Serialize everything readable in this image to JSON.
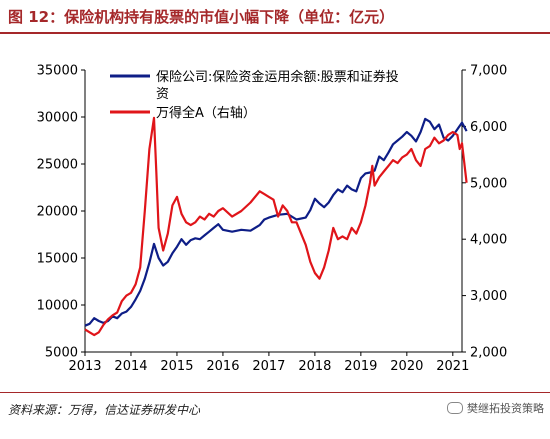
{
  "title": "图 12：保险机构持有股票的市值小幅下降（单位：亿元）",
  "source": "资料来源：万得，信达证券研发中心",
  "watermark": "樊继拓投资策略",
  "colors": {
    "series_blue": "#0e1e87",
    "series_red": "#e0151a",
    "accent": "#a5282a"
  },
  "chart_data": {
    "type": "line",
    "x_ticks": [
      "2013",
      "2014",
      "2015",
      "2016",
      "2017",
      "2018",
      "2019",
      "2020",
      "2021"
    ],
    "y_left": {
      "ylim": [
        5000,
        35000
      ],
      "ticks": [
        "5000",
        "10000",
        "15000",
        "20000",
        "25000",
        "30000",
        "35000"
      ]
    },
    "y_right": {
      "ylim": [
        2000,
        7000
      ],
      "ticks": [
        "2,000",
        "3,000",
        "4,000",
        "5,000",
        "6,000",
        "7,000"
      ]
    },
    "legend_placement": "top-left",
    "series": [
      {
        "name": "保险公司:保险资金运用余额:股票和证券投资",
        "axis": "left",
        "color": "#0e1e87",
        "points": [
          [
            2013.0,
            7800
          ],
          [
            2013.1,
            8000
          ],
          [
            2013.2,
            8600
          ],
          [
            2013.3,
            8300
          ],
          [
            2013.4,
            8100
          ],
          [
            2013.5,
            8300
          ],
          [
            2013.6,
            8800
          ],
          [
            2013.7,
            8600
          ],
          [
            2013.8,
            9100
          ],
          [
            2013.9,
            9300
          ],
          [
            2014.0,
            9800
          ],
          [
            2014.1,
            10600
          ],
          [
            2014.2,
            11500
          ],
          [
            2014.3,
            12800
          ],
          [
            2014.4,
            14500
          ],
          [
            2014.5,
            16500
          ],
          [
            2014.6,
            15000
          ],
          [
            2014.7,
            14200
          ],
          [
            2014.8,
            14600
          ],
          [
            2014.9,
            15500
          ],
          [
            2015.0,
            16200
          ],
          [
            2015.1,
            17000
          ],
          [
            2015.2,
            16400
          ],
          [
            2015.3,
            16900
          ],
          [
            2015.4,
            17100
          ],
          [
            2015.5,
            17000
          ],
          [
            2015.6,
            17400
          ],
          [
            2015.7,
            17800
          ],
          [
            2015.8,
            18200
          ],
          [
            2015.9,
            18600
          ],
          [
            2016.0,
            18000
          ],
          [
            2016.2,
            17800
          ],
          [
            2016.4,
            18000
          ],
          [
            2016.6,
            17900
          ],
          [
            2016.8,
            18500
          ],
          [
            2016.9,
            19100
          ],
          [
            2017.0,
            19300
          ],
          [
            2017.2,
            19600
          ],
          [
            2017.4,
            19700
          ],
          [
            2017.6,
            19100
          ],
          [
            2017.8,
            19300
          ],
          [
            2017.9,
            20100
          ],
          [
            2018.0,
            21300
          ],
          [
            2018.1,
            20800
          ],
          [
            2018.2,
            20400
          ],
          [
            2018.3,
            20900
          ],
          [
            2018.4,
            21700
          ],
          [
            2018.5,
            22300
          ],
          [
            2018.6,
            22000
          ],
          [
            2018.7,
            22700
          ],
          [
            2018.8,
            22300
          ],
          [
            2018.9,
            22100
          ],
          [
            2019.0,
            23500
          ],
          [
            2019.1,
            24000
          ],
          [
            2019.2,
            24100
          ],
          [
            2019.3,
            24300
          ],
          [
            2019.4,
            25800
          ],
          [
            2019.5,
            25400
          ],
          [
            2019.6,
            26200
          ],
          [
            2019.7,
            27100
          ],
          [
            2019.8,
            27500
          ],
          [
            2019.9,
            27900
          ],
          [
            2020.0,
            28400
          ],
          [
            2020.1,
            28000
          ],
          [
            2020.2,
            27400
          ],
          [
            2020.3,
            28400
          ],
          [
            2020.4,
            29800
          ],
          [
            2020.5,
            29500
          ],
          [
            2020.6,
            28700
          ],
          [
            2020.7,
            29200
          ],
          [
            2020.8,
            27800
          ],
          [
            2020.9,
            27500
          ],
          [
            2021.0,
            28000
          ],
          [
            2021.1,
            28700
          ],
          [
            2021.2,
            29400
          ],
          [
            2021.3,
            28500
          ]
        ]
      },
      {
        "name": "万得全A（右轴）",
        "axis": "right",
        "color": "#e0151a",
        "points": [
          [
            2013.0,
            2400
          ],
          [
            2013.1,
            2350
          ],
          [
            2013.2,
            2300
          ],
          [
            2013.3,
            2350
          ],
          [
            2013.4,
            2480
          ],
          [
            2013.5,
            2580
          ],
          [
            2013.6,
            2650
          ],
          [
            2013.7,
            2700
          ],
          [
            2013.8,
            2900
          ],
          [
            2013.9,
            3000
          ],
          [
            2014.0,
            3050
          ],
          [
            2014.1,
            3200
          ],
          [
            2014.2,
            3500
          ],
          [
            2014.3,
            4500
          ],
          [
            2014.4,
            5600
          ],
          [
            2014.5,
            6150
          ],
          [
            2014.55,
            5200
          ],
          [
            2014.6,
            4200
          ],
          [
            2014.7,
            3800
          ],
          [
            2014.8,
            4100
          ],
          [
            2014.9,
            4600
          ],
          [
            2015.0,
            4750
          ],
          [
            2015.1,
            4450
          ],
          [
            2015.2,
            4300
          ],
          [
            2015.3,
            4250
          ],
          [
            2015.4,
            4300
          ],
          [
            2015.5,
            4400
          ],
          [
            2015.6,
            4350
          ],
          [
            2015.7,
            4450
          ],
          [
            2015.8,
            4400
          ],
          [
            2015.9,
            4500
          ],
          [
            2016.0,
            4550
          ],
          [
            2016.2,
            4400
          ],
          [
            2016.4,
            4500
          ],
          [
            2016.6,
            4650
          ],
          [
            2016.8,
            4850
          ],
          [
            2016.9,
            4800
          ],
          [
            2017.0,
            4750
          ],
          [
            2017.1,
            4700
          ],
          [
            2017.2,
            4400
          ],
          [
            2017.3,
            4600
          ],
          [
            2017.4,
            4500
          ],
          [
            2017.5,
            4300
          ],
          [
            2017.6,
            4300
          ],
          [
            2017.7,
            4100
          ],
          [
            2017.8,
            3900
          ],
          [
            2017.9,
            3600
          ],
          [
            2018.0,
            3400
          ],
          [
            2018.1,
            3300
          ],
          [
            2018.2,
            3500
          ],
          [
            2018.3,
            3800
          ],
          [
            2018.4,
            4200
          ],
          [
            2018.5,
            4000
          ],
          [
            2018.6,
            4050
          ],
          [
            2018.7,
            4000
          ],
          [
            2018.8,
            4200
          ],
          [
            2018.9,
            4100
          ],
          [
            2019.0,
            4300
          ],
          [
            2019.1,
            4600
          ],
          [
            2019.2,
            5000
          ],
          [
            2019.25,
            5300
          ],
          [
            2019.3,
            4950
          ],
          [
            2019.4,
            5100
          ],
          [
            2019.5,
            5200
          ],
          [
            2019.6,
            5300
          ],
          [
            2019.7,
            5400
          ],
          [
            2019.8,
            5350
          ],
          [
            2019.9,
            5450
          ],
          [
            2020.0,
            5500
          ],
          [
            2020.1,
            5600
          ],
          [
            2020.2,
            5400
          ],
          [
            2020.3,
            5300
          ],
          [
            2020.4,
            5600
          ],
          [
            2020.5,
            5650
          ],
          [
            2020.6,
            5800
          ],
          [
            2020.7,
            5700
          ],
          [
            2020.8,
            5750
          ],
          [
            2020.9,
            5850
          ],
          [
            2021.0,
            5900
          ],
          [
            2021.1,
            5850
          ],
          [
            2021.15,
            5600
          ],
          [
            2021.2,
            5700
          ],
          [
            2021.3,
            5000
          ]
        ]
      }
    ]
  }
}
